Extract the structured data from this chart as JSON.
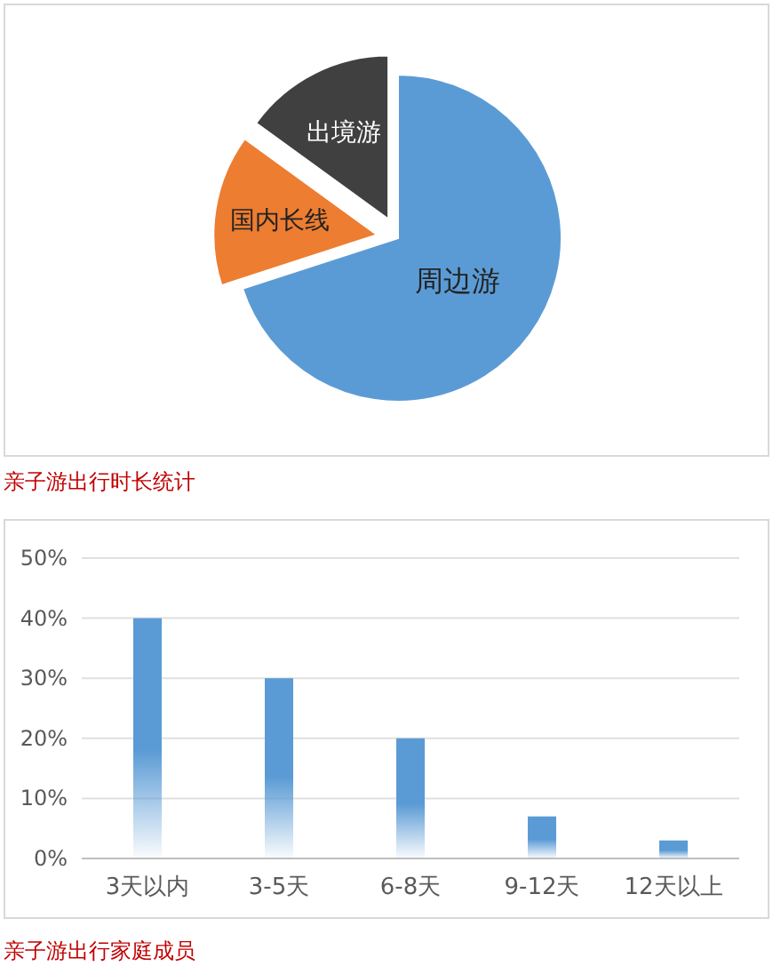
{
  "chart_data": [
    {
      "type": "pie",
      "categories": [
        "周边游",
        "国内长线",
        "出境游"
      ],
      "values": [
        70,
        15,
        15
      ],
      "colors": [
        "#5b9bd5",
        "#ed7d31",
        "#404040"
      ]
    },
    {
      "type": "bar",
      "title": "亲子游出行时长统计",
      "categories": [
        "3天以内",
        "3-5天",
        "6-8天",
        "9-12天",
        "12天以上"
      ],
      "values": [
        40,
        30,
        20,
        7,
        3
      ],
      "color": "#5b9bd5",
      "ylim": [
        0,
        50
      ],
      "yticks": [
        {
          "value": 0,
          "label": "0%"
        },
        {
          "value": 10,
          "label": "10%"
        },
        {
          "value": 20,
          "label": "20%"
        },
        {
          "value": 30,
          "label": "30%"
        },
        {
          "value": 40,
          "label": "40%"
        },
        {
          "value": 50,
          "label": "50%"
        }
      ],
      "grid": "y",
      "annotations": [
        "亲子游出行家庭成员"
      ]
    }
  ]
}
